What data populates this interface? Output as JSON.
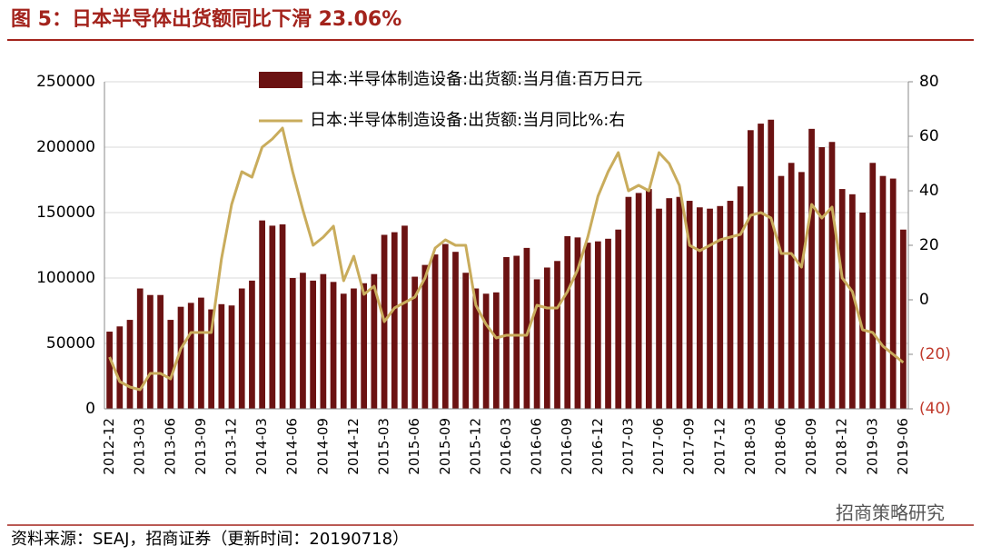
{
  "chart_data": {
    "type": "bar+line",
    "title": "图 5：日本半导体出货额同比下滑 23.06%",
    "source": "资料来源：SEAJ，招商证券（更新时间：20190718）",
    "watermark": "招商策略研究",
    "categories": [
      "2012-12",
      null,
      null,
      "2013-03",
      null,
      null,
      "2013-06",
      null,
      null,
      "2013-09",
      null,
      null,
      "2013-12",
      null,
      null,
      "2014-03",
      null,
      null,
      "2014-06",
      null,
      null,
      "2014-09",
      null,
      null,
      "2014-12",
      null,
      null,
      "2015-03",
      null,
      null,
      "2015-06",
      null,
      null,
      "2015-09",
      null,
      null,
      "2015-12",
      null,
      null,
      "2016-03",
      null,
      null,
      "2016-06",
      null,
      null,
      "2016-09",
      null,
      null,
      "2016-12",
      null,
      null,
      "2017-03",
      null,
      null,
      "2017-06",
      null,
      null,
      "2017-09",
      null,
      null,
      "2017-12",
      null,
      null,
      "2018-03",
      null,
      null,
      "2018-06",
      null,
      null,
      "2018-09",
      null,
      null,
      "2018-12",
      null,
      null,
      "2019-03",
      null,
      null,
      "2019-06"
    ],
    "series": [
      {
        "name": "日本:半导体制造设备:出货额:当月值:百万日元",
        "type": "bar",
        "color": "#6b1212",
        "values": [
          59000,
          63000,
          68000,
          92000,
          87000,
          87000,
          68000,
          78000,
          81000,
          85000,
          76000,
          80000,
          79000,
          92000,
          98000,
          144000,
          140000,
          141000,
          100000,
          104000,
          98000,
          103000,
          97000,
          88000,
          92000,
          96000,
          103000,
          133000,
          135000,
          140000,
          101000,
          110000,
          118000,
          126000,
          120000,
          104000,
          92000,
          88000,
          89000,
          116000,
          117000,
          123000,
          99000,
          108000,
          113000,
          132000,
          131000,
          127000,
          128000,
          130000,
          137000,
          162000,
          165000,
          168000,
          153000,
          161000,
          162000,
          159000,
          154000,
          153000,
          155000,
          159000,
          170000,
          213000,
          218000,
          221000,
          178000,
          188000,
          181000,
          214000,
          200000,
          204000,
          168000,
          164000,
          150000,
          188000,
          178000,
          176000,
          137000
        ]
      },
      {
        "name": "日本:半导体制造设备:出货额:当月同比%:右",
        "type": "line",
        "axis": "y2",
        "color": "#c9ac5c",
        "values": [
          -21,
          -30,
          -32,
          -33,
          -27,
          -27,
          -29,
          -18,
          -12,
          -12,
          -12,
          15,
          35,
          47,
          45,
          56,
          59,
          63,
          47,
          33,
          20,
          23,
          27,
          7,
          16,
          2,
          5,
          -8,
          -3,
          -1,
          1,
          8,
          19,
          22,
          20,
          20,
          -2,
          -9,
          -14,
          -13,
          -13,
          -13,
          -2,
          -3,
          -3,
          3,
          11,
          23,
          38,
          47,
          54,
          40,
          42,
          40,
          54,
          50,
          42,
          20,
          18,
          20,
          22,
          23,
          24,
          31,
          32,
          30,
          17,
          17,
          12,
          35,
          30,
          34,
          8,
          3,
          -11,
          -12,
          -17,
          -20,
          -23
        ]
      }
    ],
    "ylim": [
      0,
      250000
    ],
    "yticks": [
      0,
      50000,
      100000,
      150000,
      200000,
      250000
    ],
    "y2lim": [
      -40,
      80
    ],
    "y2ticks": [
      {
        "value": -40,
        "label": "(40)"
      },
      {
        "value": -20,
        "label": "(20)"
      },
      0,
      20,
      40,
      60,
      80
    ],
    "y2_negative_color": "#c0392b",
    "grid": true,
    "legend": "top"
  }
}
